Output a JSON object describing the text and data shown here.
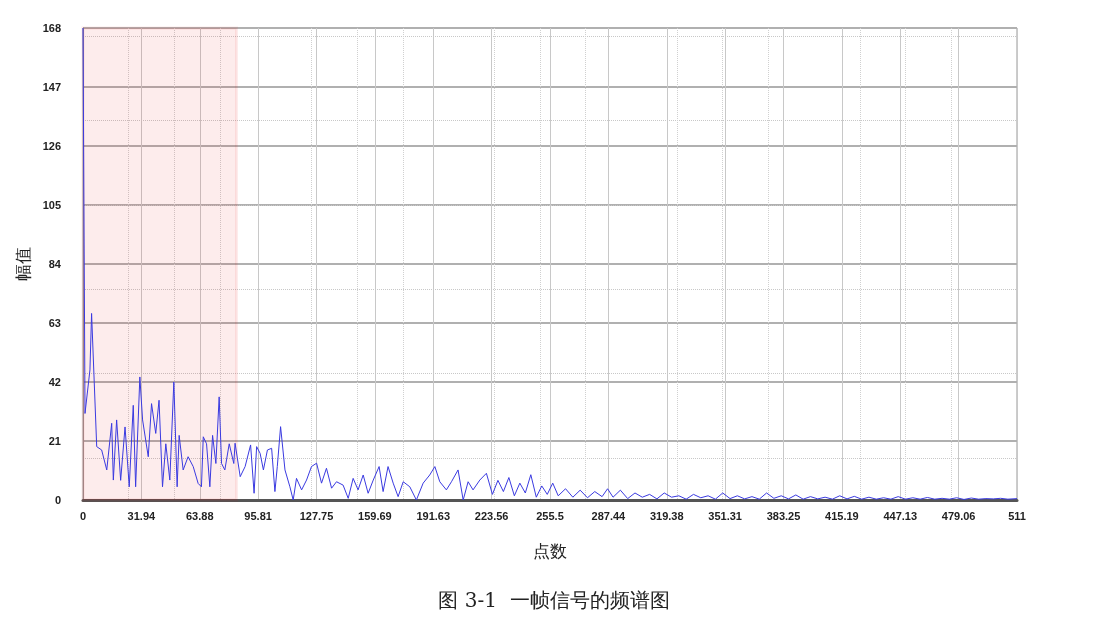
{
  "chart_data": {
    "type": "line",
    "xlabel": "点数",
    "ylabel": "幅值",
    "annotations": [
      "图 3-1  一帧信号的频谱图"
    ],
    "xlim": [
      0,
      511
    ],
    "ylim": [
      0,
      168
    ],
    "xticks": [
      0,
      31.94,
      63.88,
      95.81,
      127.75,
      159.69,
      191.63,
      223.56,
      255.5,
      287.44,
      319.38,
      351.31,
      383.25,
      415.19,
      447.13,
      479.06,
      511
    ],
    "yticks": [
      0,
      21,
      42,
      63,
      84,
      105,
      126,
      147,
      168
    ],
    "grid": true,
    "marker": "none",
    "line_style": "solid",
    "bands": [
      {
        "axis": "x",
        "from": 0,
        "to": 84,
        "color": "#e01010"
      }
    ],
    "series": [
      {
        "color": "#3a3ae0",
        "x": [
          0,
          1.1,
          3.8,
          4.7,
          7.5,
          10.2,
          13,
          15.7,
          16.6,
          18.4,
          20.6,
          23,
          25.3,
          27.5,
          28.8,
          31.1,
          32.6,
          35.7,
          37.5,
          39.8,
          41.6,
          43.5,
          45.3,
          47.5,
          49.7,
          51.5,
          52.6,
          54.8,
          57.5,
          60.3,
          63,
          64.8,
          65.8,
          67.6,
          69.4,
          70.9,
          72.7,
          74.5,
          75.8,
          77.6,
          80,
          82.5,
          83.2,
          86,
          88.7,
          91.7,
          93.6,
          95,
          96.9,
          98.7,
          100.9,
          103.2,
          105,
          106.3,
          108.1,
          110.5,
          113.2,
          115,
          116.8,
          119.6,
          122.3,
          125,
          127.8,
          130.5,
          133.2,
          136,
          138.7,
          142.3,
          145.1,
          147.8,
          150.5,
          153.3,
          156,
          158.8,
          162,
          164.2,
          166.9,
          169.7,
          172.4,
          175.2,
          178.8,
          182.4,
          186.1,
          189.7,
          192.5,
          195.2,
          198.8,
          201.6,
          205.2,
          208,
          210.7,
          213.4,
          217.1,
          220.7,
          224,
          227,
          230,
          233,
          236,
          239,
          242,
          245,
          248,
          251,
          254,
          257,
          260,
          264,
          268,
          272,
          276,
          280,
          284,
          287,
          290,
          294,
          298,
          302,
          306,
          310,
          314,
          318,
          322,
          326,
          330,
          334,
          338,
          342,
          346,
          350,
          354,
          358,
          362,
          366,
          370,
          374,
          378,
          382,
          386,
          390,
          394,
          398,
          402,
          406,
          410,
          414,
          418,
          422,
          426,
          430,
          434,
          438,
          442,
          446,
          450,
          454,
          458,
          462,
          466,
          470,
          474,
          478,
          482,
          486,
          490,
          494,
          498,
          502,
          506,
          511
        ],
        "values": [
          168,
          30.8,
          46.3,
          66.4,
          19,
          17.8,
          10.7,
          27.3,
          7.1,
          28.5,
          7,
          26,
          4.7,
          33.7,
          4.7,
          43.8,
          28.5,
          15.4,
          34.3,
          23.7,
          35.5,
          4.7,
          20,
          7.1,
          42,
          4.7,
          23,
          10.7,
          15.4,
          11.9,
          5.9,
          4.7,
          22.5,
          20,
          4.7,
          23,
          13,
          36.7,
          13,
          10.7,
          20,
          13,
          20.2,
          8.3,
          11.9,
          19.6,
          2.4,
          19,
          16.6,
          10.7,
          17.8,
          18.4,
          3,
          11.9,
          26.1,
          10.7,
          4.7,
          0,
          7.7,
          3.6,
          7.1,
          11.9,
          13.1,
          6,
          11.3,
          4.2,
          6.5,
          5.3,
          0.6,
          7.7,
          3.6,
          8.9,
          2.4,
          7.1,
          11.9,
          3,
          11.9,
          6,
          1.2,
          6.5,
          4.7,
          0,
          6,
          8.9,
          11.9,
          6.5,
          3.6,
          6.5,
          10.7,
          0,
          6.5,
          3.6,
          7.1,
          9.5,
          2,
          7,
          3,
          8,
          1.5,
          6,
          2.5,
          9,
          1,
          5,
          2,
          6,
          1.5,
          4,
          1,
          3.5,
          0.8,
          3,
          1.2,
          4,
          1,
          3.5,
          0.5,
          2.5,
          1,
          2,
          0.4,
          2.5,
          1,
          1.5,
          0.3,
          2,
          0.8,
          1.5,
          0.3,
          2.5,
          0.5,
          1.5,
          0.4,
          1.2,
          0.3,
          2.5,
          0.6,
          1.5,
          0.4,
          1.8,
          0.3,
          1.2,
          0.4,
          1,
          0.3,
          1.5,
          0.4,
          1.3,
          0.3,
          1,
          0.3,
          0.8,
          0.3,
          1.2,
          0.3,
          0.8,
          0.3,
          0.9,
          0.3,
          0.6,
          0.3,
          0.8,
          0.2,
          0.7,
          0.3,
          0.5,
          0.4,
          0.6,
          0.3,
          0.5
        ]
      }
    ]
  }
}
